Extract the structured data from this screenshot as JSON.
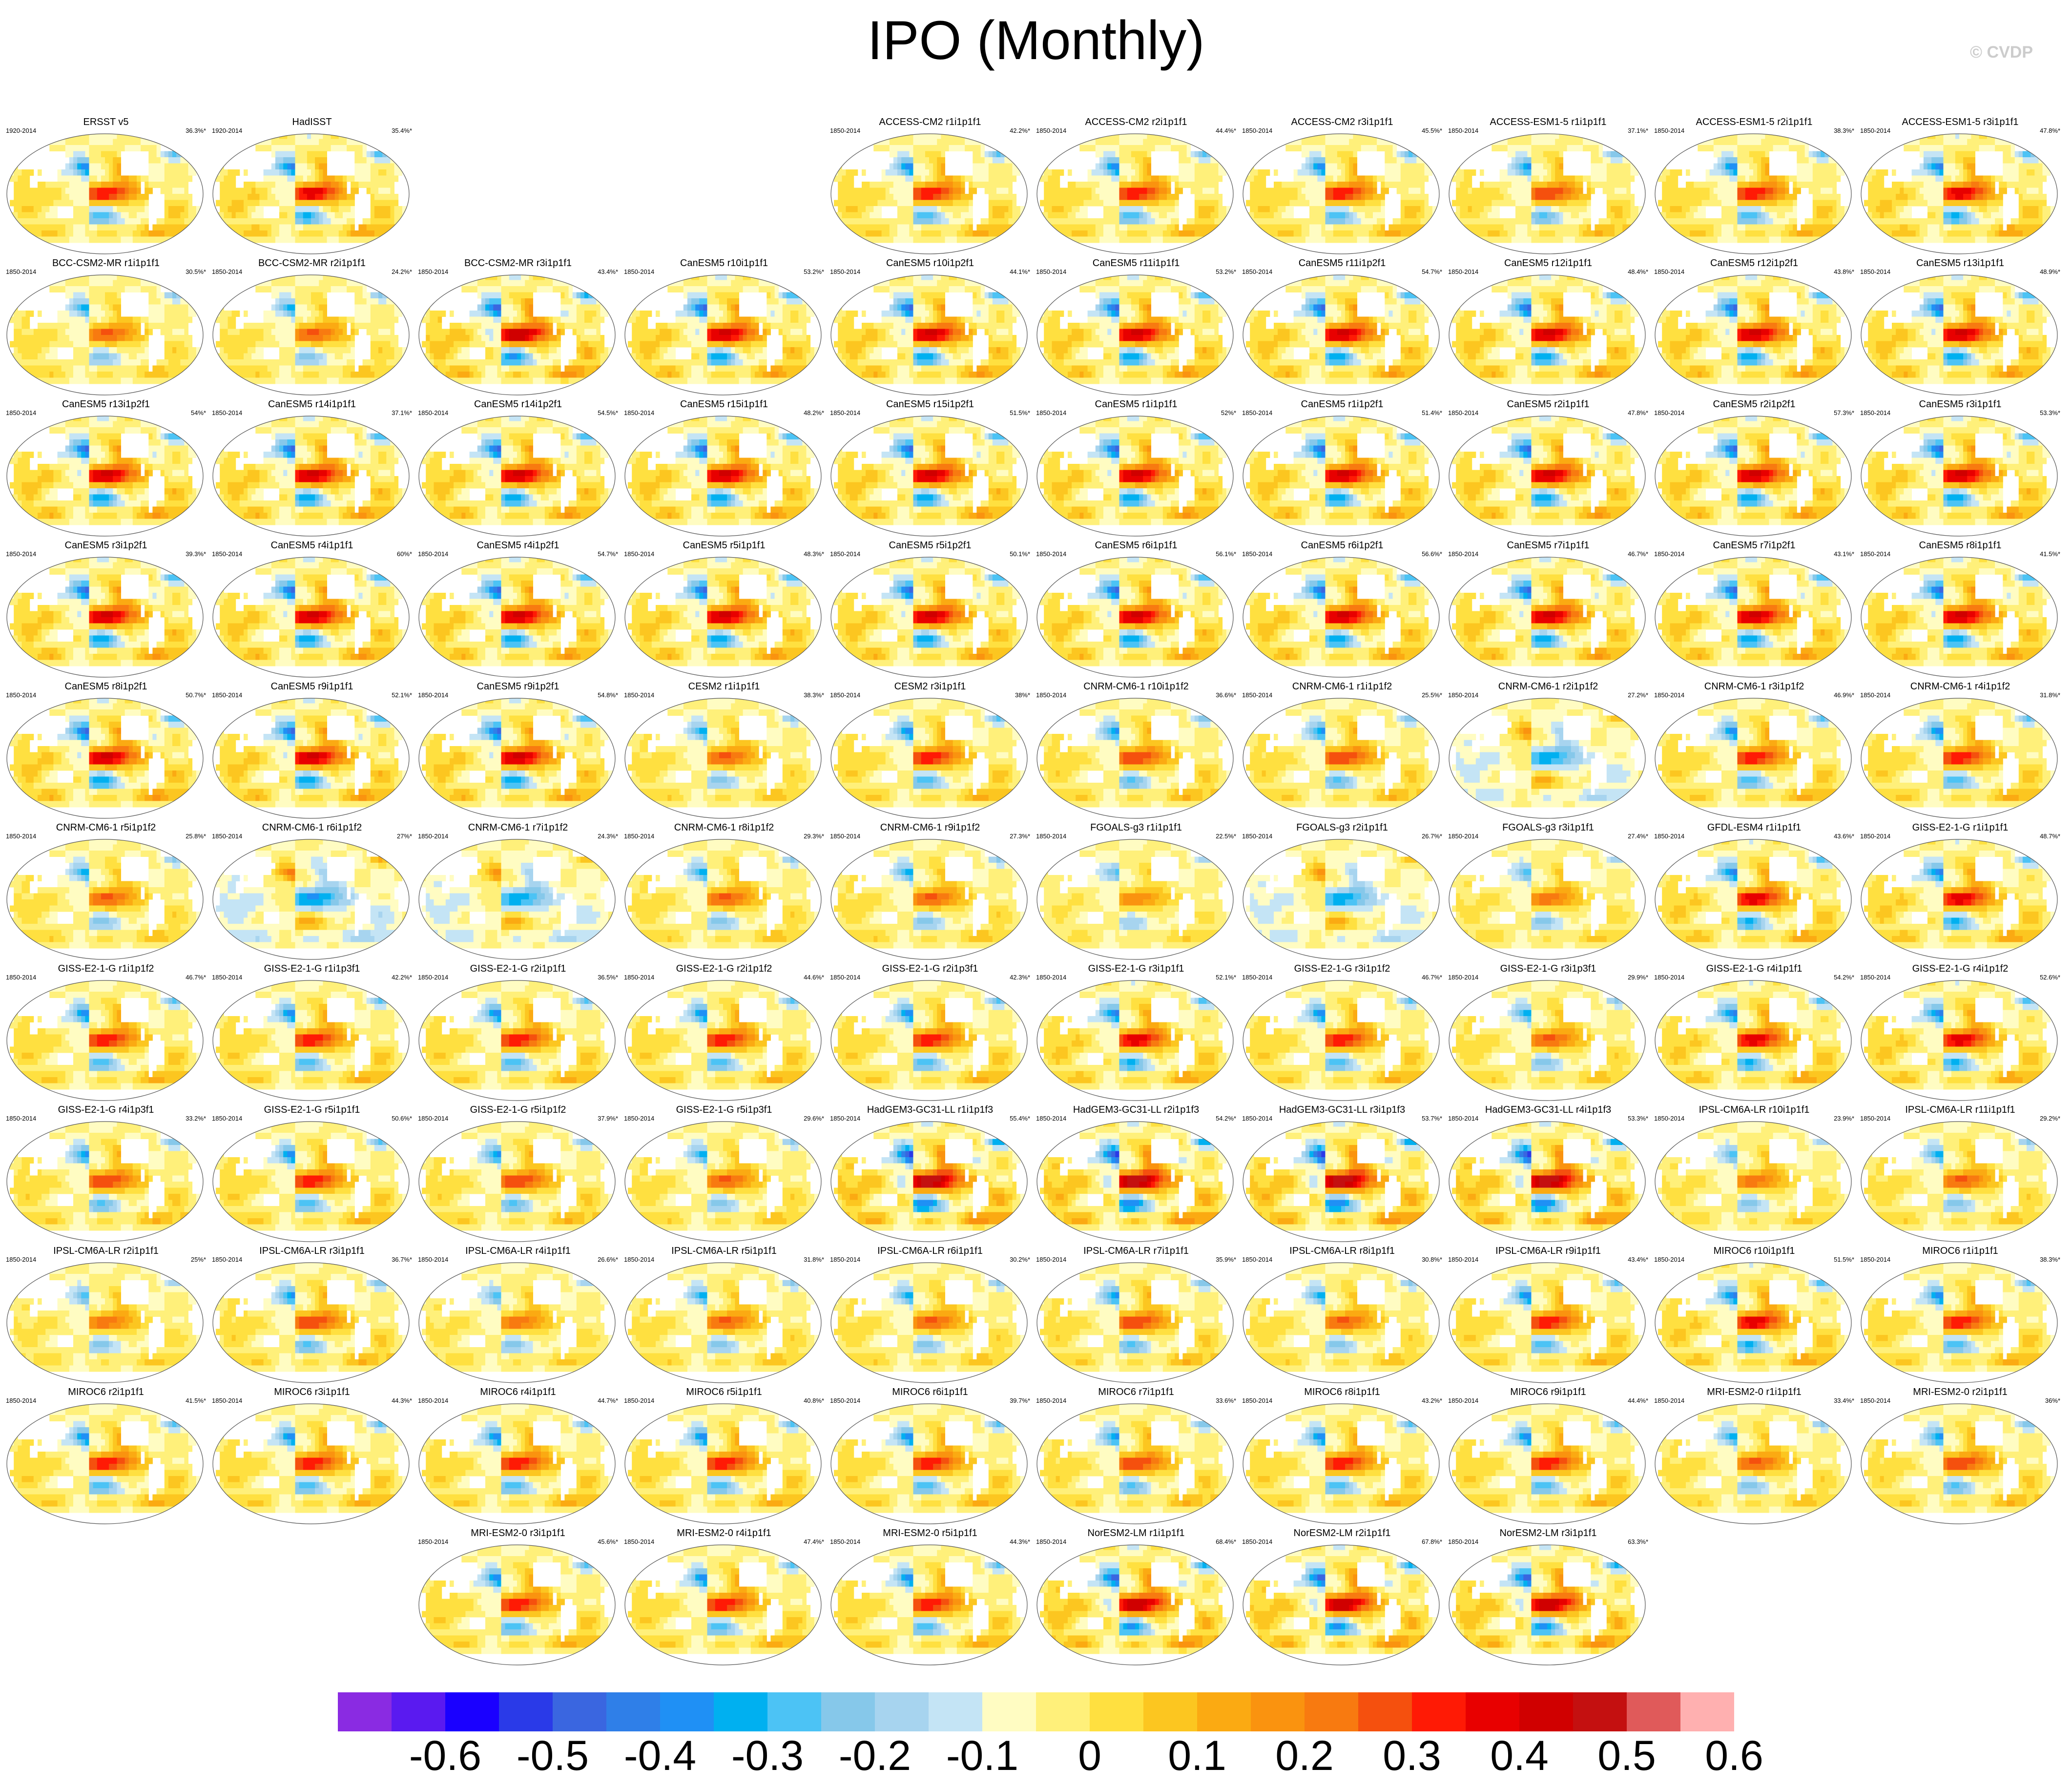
{
  "title": "IPO (Monthly)",
  "watermark": "© CVDP",
  "chart_data": {
    "type": "heatmap",
    "description_kind": "small-multiples global maps of IPO regression pattern",
    "colorbar": {
      "colors": [
        "#8a2be2",
        "#5a1af0",
        "#1a00ff",
        "#2a3ae8",
        "#3a66e0",
        "#2f7fe8",
        "#1f90f5",
        "#00b0f0",
        "#4cc3f5",
        "#86c8ea",
        "#a7d4ef",
        "#c4e4f5",
        "#fffcc2",
        "#fff07a",
        "#ffe040",
        "#fcc620",
        "#fbaa12",
        "#fa930f",
        "#f87a10",
        "#f5500e",
        "#ff1a05",
        "#e80000",
        "#d00000",
        "#c41010",
        "#e05a5a",
        "#ffb0b0"
      ],
      "tick_labels": [
        "-0.6",
        "-0.5",
        "-0.4",
        "-0.3",
        "-0.2",
        "-0.1",
        "0",
        "0.1",
        "0.2",
        "0.3",
        "0.4",
        "0.5",
        "0.6"
      ],
      "range": [
        -0.65,
        0.65
      ]
    },
    "panels": [
      {
        "name": "ERSST v5",
        "years": "1920-2014",
        "pct": "36.3%*",
        "row": 0,
        "col": 0,
        "s": 1.0
      },
      {
        "name": "HadISST",
        "years": "1920-2014",
        "pct": "35.4%*",
        "row": 0,
        "col": 1,
        "s": 1.1
      },
      {
        "name": "ACCESS-CM2 r1i1p1f1",
        "years": "1850-2014",
        "pct": "42.2%*",
        "row": 0,
        "col": 4,
        "s": 1.0
      },
      {
        "name": "ACCESS-CM2 r2i1p1f1",
        "years": "1850-2014",
        "pct": "44.4%*",
        "row": 0,
        "col": 5,
        "s": 1.0
      },
      {
        "name": "ACCESS-CM2 r3i1p1f1",
        "years": "1850-2014",
        "pct": "45.5%*",
        "row": 0,
        "col": 6,
        "s": 1.0
      },
      {
        "name": "ACCESS-ESM1-5 r1i1p1f1",
        "years": "1850-2014",
        "pct": "37.1%*",
        "row": 0,
        "col": 7,
        "s": 0.9
      },
      {
        "name": "ACCESS-ESM1-5 r2i1p1f1",
        "years": "1850-2014",
        "pct": "38.3%*",
        "row": 0,
        "col": 8,
        "s": 1.0
      },
      {
        "name": "ACCESS-ESM1-5 r3i1p1f1",
        "years": "1850-2014",
        "pct": "47.8%*",
        "row": 0,
        "col": 9,
        "s": 1.1
      },
      {
        "name": "BCC-CSM2-MR r1i1p1f1",
        "years": "1850-2014",
        "pct": "30.5%*",
        "row": 1,
        "col": 0,
        "s": 0.8
      },
      {
        "name": "BCC-CSM2-MR r2i1p1f1",
        "years": "1850-2014",
        "pct": "24.2%*",
        "row": 1,
        "col": 1,
        "s": 0.8
      },
      {
        "name": "BCC-CSM2-MR r3i1p1f1",
        "years": "1850-2014",
        "pct": "43.4%*",
        "row": 1,
        "col": 2,
        "s": 1.3
      },
      {
        "name": "CanESM5 r10i1p1f1",
        "years": "1850-2014",
        "pct": "53.2%*",
        "row": 1,
        "col": 3,
        "s": 1.2
      },
      {
        "name": "CanESM5 r10i1p2f1",
        "years": "1850-2014",
        "pct": "44.1%*",
        "row": 1,
        "col": 4,
        "s": 1.2
      },
      {
        "name": "CanESM5 r11i1p1f1",
        "years": "1850-2014",
        "pct": "53.2%*",
        "row": 1,
        "col": 5,
        "s": 1.2
      },
      {
        "name": "CanESM5 r11i1p2f1",
        "years": "1850-2014",
        "pct": "54.7%*",
        "row": 1,
        "col": 6,
        "s": 1.2
      },
      {
        "name": "CanESM5 r12i1p1f1",
        "years": "1850-2014",
        "pct": "48.4%*",
        "row": 1,
        "col": 7,
        "s": 1.2
      },
      {
        "name": "CanESM5 r12i1p2f1",
        "years": "1850-2014",
        "pct": "43.8%*",
        "row": 1,
        "col": 8,
        "s": 1.2
      },
      {
        "name": "CanESM5 r13i1p1f1",
        "years": "1850-2014",
        "pct": "48.9%*",
        "row": 1,
        "col": 9,
        "s": 1.2
      },
      {
        "name": "CanESM5 r13i1p2f1",
        "years": "1850-2014",
        "pct": "54%*",
        "row": 2,
        "col": 0,
        "s": 1.2
      },
      {
        "name": "CanESM5 r14i1p1f1",
        "years": "1850-2014",
        "pct": "37.1%*",
        "row": 2,
        "col": 1,
        "s": 1.2
      },
      {
        "name": "CanESM5 r14i1p2f1",
        "years": "1850-2014",
        "pct": "54.5%*",
        "row": 2,
        "col": 2,
        "s": 1.2
      },
      {
        "name": "CanESM5 r15i1p1f1",
        "years": "1850-2014",
        "pct": "48.2%*",
        "row": 2,
        "col": 3,
        "s": 1.2
      },
      {
        "name": "CanESM5 r15i1p2f1",
        "years": "1850-2014",
        "pct": "51.5%*",
        "row": 2,
        "col": 4,
        "s": 1.2
      },
      {
        "name": "CanESM5 r1i1p1f1",
        "years": "1850-2014",
        "pct": "52%*",
        "row": 2,
        "col": 5,
        "s": 1.2
      },
      {
        "name": "CanESM5 r1i1p2f1",
        "years": "1850-2014",
        "pct": "51.4%*",
        "row": 2,
        "col": 6,
        "s": 1.2
      },
      {
        "name": "CanESM5 r2i1p1f1",
        "years": "1850-2014",
        "pct": "47.8%*",
        "row": 2,
        "col": 7,
        "s": 1.2
      },
      {
        "name": "CanESM5 r2i1p2f1",
        "years": "1850-2014",
        "pct": "57.3%*",
        "row": 2,
        "col": 8,
        "s": 1.2
      },
      {
        "name": "CanESM5 r3i1p1f1",
        "years": "1850-2014",
        "pct": "53.3%*",
        "row": 2,
        "col": 9,
        "s": 1.2
      },
      {
        "name": "CanESM5 r3i1p2f1",
        "years": "1850-2014",
        "pct": "39.3%*",
        "row": 3,
        "col": 0,
        "s": 1.2
      },
      {
        "name": "CanESM5 r4i1p1f1",
        "years": "1850-2014",
        "pct": "60%*",
        "row": 3,
        "col": 1,
        "s": 1.2
      },
      {
        "name": "CanESM5 r4i1p2f1",
        "years": "1850-2014",
        "pct": "54.7%*",
        "row": 3,
        "col": 2,
        "s": 1.2
      },
      {
        "name": "CanESM5 r5i1p1f1",
        "years": "1850-2014",
        "pct": "48.3%*",
        "row": 3,
        "col": 3,
        "s": 1.2
      },
      {
        "name": "CanESM5 r5i1p2f1",
        "years": "1850-2014",
        "pct": "50.1%*",
        "row": 3,
        "col": 4,
        "s": 1.2
      },
      {
        "name": "CanESM5 r6i1p1f1",
        "years": "1850-2014",
        "pct": "56.1%*",
        "row": 3,
        "col": 5,
        "s": 1.2
      },
      {
        "name": "CanESM5 r6i1p2f1",
        "years": "1850-2014",
        "pct": "56.6%*",
        "row": 3,
        "col": 6,
        "s": 1.2
      },
      {
        "name": "CanESM5 r7i1p1f1",
        "years": "1850-2014",
        "pct": "46.7%*",
        "row": 3,
        "col": 7,
        "s": 1.2
      },
      {
        "name": "CanESM5 r7i1p2f1",
        "years": "1850-2014",
        "pct": "43.1%*",
        "row": 3,
        "col": 8,
        "s": 1.2
      },
      {
        "name": "CanESM5 r8i1p1f1",
        "years": "1850-2014",
        "pct": "41.5%*",
        "row": 3,
        "col": 9,
        "s": 1.2
      },
      {
        "name": "CanESM5 r8i1p2f1",
        "years": "1850-2014",
        "pct": "50.7%*",
        "row": 4,
        "col": 0,
        "s": 1.2
      },
      {
        "name": "CanESM5 r9i1p1f1",
        "years": "1850-2014",
        "pct": "52.1%*",
        "row": 4,
        "col": 1,
        "s": 1.2
      },
      {
        "name": "CanESM5 r9i1p2f1",
        "years": "1850-2014",
        "pct": "54.8%*",
        "row": 4,
        "col": 2,
        "s": 1.2
      },
      {
        "name": "CESM2 r1i1p1f1",
        "years": "1850-2014",
        "pct": "38.3%*",
        "row": 4,
        "col": 3,
        "s": 0.8
      },
      {
        "name": "CESM2 r3i1p1f1",
        "years": "1850-2014",
        "pct": "38%*",
        "row": 4,
        "col": 4,
        "s": 1.0
      },
      {
        "name": "CNRM-CM6-1 r10i1p1f2",
        "years": "1850-2014",
        "pct": "36.6%*",
        "row": 4,
        "col": 5,
        "s": 0.9
      },
      {
        "name": "CNRM-CM6-1 r1i1p1f2",
        "years": "1850-2014",
        "pct": "25.5%*",
        "row": 4,
        "col": 6,
        "s": 0.9
      },
      {
        "name": "CNRM-CM6-1 r2i1p1f2",
        "years": "1850-2014",
        "pct": "27.2%*",
        "row": 4,
        "col": 7,
        "s": -0.7
      },
      {
        "name": "CNRM-CM6-1 r3i1p1f2",
        "years": "1850-2014",
        "pct": "46.9%*",
        "row": 4,
        "col": 8,
        "s": 1.0
      },
      {
        "name": "CNRM-CM6-1 r4i1p1f2",
        "years": "1850-2014",
        "pct": "31.8%*",
        "row": 4,
        "col": 9,
        "s": 1.0
      },
      {
        "name": "CNRM-CM6-1 r5i1p1f2",
        "years": "1850-2014",
        "pct": "25.8%*",
        "row": 5,
        "col": 0,
        "s": 0.8
      },
      {
        "name": "CNRM-CM6-1 r6i1p1f2",
        "years": "1850-2014",
        "pct": "27%*",
        "row": 5,
        "col": 1,
        "s": -0.8
      },
      {
        "name": "CNRM-CM6-1 r7i1p1f2",
        "years": "1850-2014",
        "pct": "24.3%*",
        "row": 5,
        "col": 2,
        "s": -0.7
      },
      {
        "name": "CNRM-CM6-1 r8i1p1f2",
        "years": "1850-2014",
        "pct": "29.3%*",
        "row": 5,
        "col": 3,
        "s": 0.8
      },
      {
        "name": "CNRM-CM6-1 r9i1p1f2",
        "years": "1850-2014",
        "pct": "27.3%*",
        "row": 5,
        "col": 4,
        "s": 0.8
      },
      {
        "name": "FGOALS-g3 r1i1p1f1",
        "years": "1850-2014",
        "pct": "22.5%*",
        "row": 5,
        "col": 5,
        "s": 0.6
      },
      {
        "name": "FGOALS-g3 r2i1p1f1",
        "years": "1850-2014",
        "pct": "26.7%*",
        "row": 5,
        "col": 6,
        "s": -0.7
      },
      {
        "name": "FGOALS-g3 r3i1p1f1",
        "years": "1850-2014",
        "pct": "27.4%*",
        "row": 5,
        "col": 7,
        "s": 0.7
      },
      {
        "name": "GFDL-ESM4 r1i1p1f1",
        "years": "1850-2014",
        "pct": "43.6%*",
        "row": 5,
        "col": 8,
        "s": 1.1
      },
      {
        "name": "GISS-E2-1-G r1i1p1f1",
        "years": "1850-2014",
        "pct": "48.7%*",
        "row": 5,
        "col": 9,
        "s": 1.1
      },
      {
        "name": "GISS-E2-1-G r1i1p1f2",
        "years": "1850-2014",
        "pct": "46.7%*",
        "row": 6,
        "col": 0,
        "s": 1.0
      },
      {
        "name": "GISS-E2-1-G r1i1p3f1",
        "years": "1850-2014",
        "pct": "42.2%*",
        "row": 6,
        "col": 1,
        "s": 1.0
      },
      {
        "name": "GISS-E2-1-G r2i1p1f1",
        "years": "1850-2014",
        "pct": "36.5%*",
        "row": 6,
        "col": 2,
        "s": 1.0
      },
      {
        "name": "GISS-E2-1-G r2i1p1f2",
        "years": "1850-2014",
        "pct": "44.6%*",
        "row": 6,
        "col": 3,
        "s": 1.0
      },
      {
        "name": "GISS-E2-1-G r2i1p3f1",
        "years": "1850-2014",
        "pct": "42.3%*",
        "row": 6,
        "col": 4,
        "s": 1.0
      },
      {
        "name": "GISS-E2-1-G r3i1p1f1",
        "years": "1850-2014",
        "pct": "52.1%*",
        "row": 6,
        "col": 5,
        "s": 1.1
      },
      {
        "name": "GISS-E2-1-G r3i1p1f2",
        "years": "1850-2014",
        "pct": "46.7%*",
        "row": 6,
        "col": 6,
        "s": 1.0
      },
      {
        "name": "GISS-E2-1-G r3i1p3f1",
        "years": "1850-2014",
        "pct": "29.9%*",
        "row": 6,
        "col": 7,
        "s": 0.8
      },
      {
        "name": "GISS-E2-1-G r4i1p1f1",
        "years": "1850-2014",
        "pct": "54.2%*",
        "row": 6,
        "col": 8,
        "s": 1.1
      },
      {
        "name": "GISS-E2-1-G r4i1p1f2",
        "years": "1850-2014",
        "pct": "52.6%*",
        "row": 6,
        "col": 9,
        "s": 1.1
      },
      {
        "name": "GISS-E2-1-G r4i1p3f1",
        "years": "1850-2014",
        "pct": "33.2%*",
        "row": 7,
        "col": 0,
        "s": 0.9
      },
      {
        "name": "GISS-E2-1-G r5i1p1f1",
        "years": "1850-2014",
        "pct": "50.6%*",
        "row": 7,
        "col": 1,
        "s": 1.0
      },
      {
        "name": "GISS-E2-1-G r5i1p1f2",
        "years": "1850-2014",
        "pct": "37.9%*",
        "row": 7,
        "col": 2,
        "s": 0.9
      },
      {
        "name": "GISS-E2-1-G r5i1p3f1",
        "years": "1850-2014",
        "pct": "29.6%*",
        "row": 7,
        "col": 3,
        "s": 0.8
      },
      {
        "name": "HadGEM3-GC31-LL r1i1p1f3",
        "years": "1850-2014",
        "pct": "55.4%*",
        "row": 7,
        "col": 4,
        "s": 1.4
      },
      {
        "name": "HadGEM3-GC31-LL r2i1p1f3",
        "years": "1850-2014",
        "pct": "54.2%*",
        "row": 7,
        "col": 5,
        "s": 1.4
      },
      {
        "name": "HadGEM3-GC31-LL r3i1p1f3",
        "years": "1850-2014",
        "pct": "53.7%*",
        "row": 7,
        "col": 6,
        "s": 1.4
      },
      {
        "name": "HadGEM3-GC31-LL r4i1p1f3",
        "years": "1850-2014",
        "pct": "53.3%*",
        "row": 7,
        "col": 7,
        "s": 1.4
      },
      {
        "name": "IPSL-CM6A-LR r10i1p1f1",
        "years": "1850-2014",
        "pct": "23.9%*",
        "row": 7,
        "col": 8,
        "s": 0.7
      },
      {
        "name": "IPSL-CM6A-LR r11i1p1f1",
        "years": "1850-2014",
        "pct": "29.2%*",
        "row": 7,
        "col": 9,
        "s": 0.8
      },
      {
        "name": "IPSL-CM6A-LR r2i1p1f1",
        "years": "1850-2014",
        "pct": "25%*",
        "row": 8,
        "col": 0,
        "s": 0.7
      },
      {
        "name": "IPSL-CM6A-LR r3i1p1f1",
        "years": "1850-2014",
        "pct": "36.7%*",
        "row": 8,
        "col": 1,
        "s": 0.9
      },
      {
        "name": "IPSL-CM6A-LR r4i1p1f1",
        "years": "1850-2014",
        "pct": "26.6%*",
        "row": 8,
        "col": 2,
        "s": 0.7
      },
      {
        "name": "IPSL-CM6A-LR r5i1p1f1",
        "years": "1850-2014",
        "pct": "31.8%*",
        "row": 8,
        "col": 3,
        "s": 0.8
      },
      {
        "name": "IPSL-CM6A-LR r6i1p1f1",
        "years": "1850-2014",
        "pct": "30.2%*",
        "row": 8,
        "col": 4,
        "s": 0.8
      },
      {
        "name": "IPSL-CM6A-LR r7i1p1f1",
        "years": "1850-2014",
        "pct": "35.9%*",
        "row": 8,
        "col": 5,
        "s": 0.9
      },
      {
        "name": "IPSL-CM6A-LR r8i1p1f1",
        "years": "1850-2014",
        "pct": "30.8%*",
        "row": 8,
        "col": 6,
        "s": 0.8
      },
      {
        "name": "IPSL-CM6A-LR r9i1p1f1",
        "years": "1850-2014",
        "pct": "43.4%*",
        "row": 8,
        "col": 7,
        "s": 1.0
      },
      {
        "name": "MIROC6 r10i1p1f1",
        "years": "1850-2014",
        "pct": "51.5%*",
        "row": 8,
        "col": 8,
        "s": 1.1
      },
      {
        "name": "MIROC6 r1i1p1f1",
        "years": "1850-2014",
        "pct": "38.3%*",
        "row": 8,
        "col": 9,
        "s": 1.0
      },
      {
        "name": "MIROC6 r2i1p1f1",
        "years": "1850-2014",
        "pct": "41.5%*",
        "row": 9,
        "col": 0,
        "s": 1.0
      },
      {
        "name": "MIROC6 r3i1p1f1",
        "years": "1850-2014",
        "pct": "44.3%*",
        "row": 9,
        "col": 1,
        "s": 1.0
      },
      {
        "name": "MIROC6 r4i1p1f1",
        "years": "1850-2014",
        "pct": "44.7%*",
        "row": 9,
        "col": 2,
        "s": 1.0
      },
      {
        "name": "MIROC6 r5i1p1f1",
        "years": "1850-2014",
        "pct": "40.8%*",
        "row": 9,
        "col": 3,
        "s": 1.0
      },
      {
        "name": "MIROC6 r6i1p1f1",
        "years": "1850-2014",
        "pct": "39.7%*",
        "row": 9,
        "col": 4,
        "s": 1.0
      },
      {
        "name": "MIROC6 r7i1p1f1",
        "years": "1850-2014",
        "pct": "33.6%*",
        "row": 9,
        "col": 5,
        "s": 0.9
      },
      {
        "name": "MIROC6 r8i1p1f1",
        "years": "1850-2014",
        "pct": "43.2%*",
        "row": 9,
        "col": 6,
        "s": 1.0
      },
      {
        "name": "MIROC6 r9i1p1f1",
        "years": "1850-2014",
        "pct": "44.4%*",
        "row": 9,
        "col": 7,
        "s": 1.0
      },
      {
        "name": "MRI-ESM2-0 r1i1p1f1",
        "years": "1850-2014",
        "pct": "33.4%*",
        "row": 9,
        "col": 8,
        "s": 0.8
      },
      {
        "name": "MRI-ESM2-0 r2i1p1f1",
        "years": "1850-2014",
        "pct": "36%*",
        "row": 9,
        "col": 9,
        "s": 0.9
      },
      {
        "name": "MRI-ESM2-0 r3i1p1f1",
        "years": "1850-2014",
        "pct": "45.6%*",
        "row": 10,
        "col": 2,
        "s": 1.0
      },
      {
        "name": "MRI-ESM2-0 r4i1p1f1",
        "years": "1850-2014",
        "pct": "47.4%*",
        "row": 10,
        "col": 3,
        "s": 1.0
      },
      {
        "name": "MRI-ESM2-0 r5i1p1f1",
        "years": "1850-2014",
        "pct": "44.3%*",
        "row": 10,
        "col": 4,
        "s": 1.0
      },
      {
        "name": "NorESM2-LM r1i1p1f1",
        "years": "1850-2014",
        "pct": "68.4%*",
        "row": 10,
        "col": 5,
        "s": 1.3
      },
      {
        "name": "NorESM2-LM r2i1p1f1",
        "years": "1850-2014",
        "pct": "67.8%*",
        "row": 10,
        "col": 6,
        "s": 1.3
      },
      {
        "name": "NorESM2-LM r3i1p1f1",
        "years": "1850-2014",
        "pct": "63.3%*",
        "row": 10,
        "col": 7,
        "s": 1.3
      }
    ]
  }
}
